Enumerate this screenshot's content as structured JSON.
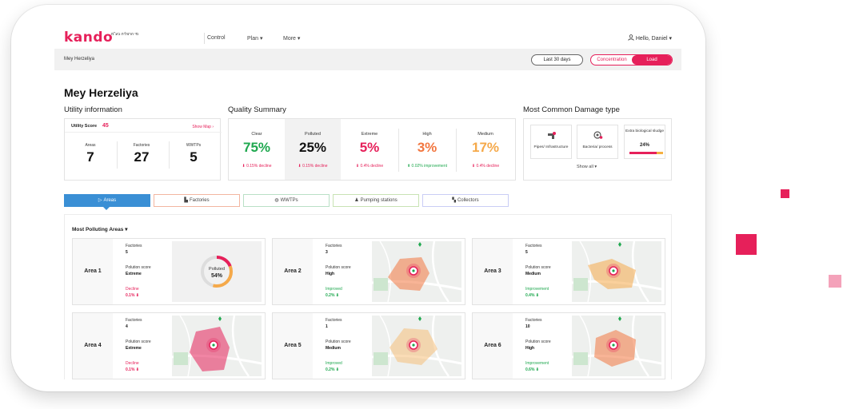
{
  "brand": {
    "logo": "kando",
    "tagline": "מי הרצליה בע\"מ"
  },
  "nav": {
    "control": "Control",
    "plan": "Plan ▾",
    "more": "More ▾",
    "user": "Hello, Daniel ▾"
  },
  "subbar": {
    "breadcrumb": "Mey Herzeliya",
    "date_range": "Last 30 days",
    "toggle_left": "Concentration",
    "toggle_right": "Load"
  },
  "page_title": "Mey Herzeliya",
  "utility": {
    "title": "Utility information",
    "score_label": "Utility Score",
    "score_value": "45",
    "show_map": "Show Map ›",
    "stats": [
      {
        "label": "Areas",
        "value": "7"
      },
      {
        "label": "Factories",
        "value": "27"
      },
      {
        "label": "WWTPs",
        "value": "5"
      }
    ]
  },
  "quality": {
    "title": "Quality Summary",
    "items": [
      {
        "label": "Clear",
        "value": "75%",
        "change": "⬇ 0.15% decline",
        "color": "#1fa84f",
        "change_color": "#e6205a"
      },
      {
        "label": "Polluted",
        "value": "25%",
        "change": "⬇ 0.15% decline",
        "color": "#111111",
        "change_color": "#e6205a"
      },
      {
        "label": "Extreme",
        "value": "5%",
        "change": "⬇ 0.4% decline",
        "color": "#e6205a",
        "change_color": "#e6205a"
      },
      {
        "label": "High",
        "value": "3%",
        "change": "⬆ 0.02% improvement",
        "color": "#f2763f",
        "change_color": "#1fa84f"
      },
      {
        "label": "Medium",
        "value": "17%",
        "change": "⬇ 0.4% decline",
        "color": "#f5a94a",
        "change_color": "#e6205a"
      }
    ]
  },
  "damage": {
    "title": "Most Common Damage type",
    "items": [
      {
        "label": "Pipes/ Infrastructure",
        "icon": "pipe-icon"
      },
      {
        "label": "Bacteria/ process",
        "icon": "bacteria-icon"
      }
    ],
    "highlight": {
      "label": "Extra biological sludge",
      "value": "24%",
      "fill": 0.8
    },
    "show_all": "Show all ▾"
  },
  "tabs": [
    {
      "label": "Areas",
      "icon": "cursor-icon"
    },
    {
      "label": "Factories",
      "icon": "factory-icon"
    },
    {
      "label": "WWTPs",
      "icon": "wwtp-icon"
    },
    {
      "label": "Pumping stations",
      "icon": "pump-icon"
    },
    {
      "label": "Collectors",
      "icon": "collector-icon"
    }
  ],
  "areas_title": "Most Polluting Areas ▾",
  "area_labels": {
    "factories": "Factories",
    "score": "Polution score"
  },
  "areas": [
    {
      "name": "Area 1",
      "factories": "5",
      "score": "Extreme",
      "trend": "Decline",
      "change": "0.1% ⬇",
      "trend_color": "#e6205a",
      "donut_label": "Polluted",
      "donut_value": "54%",
      "donut_fraction": 0.54
    },
    {
      "name": "Area 2",
      "factories": "3",
      "score": "High",
      "trend": "Improved",
      "change": "0.2% ⬇",
      "trend_color": "#1fa84f",
      "zone_color": "#f2763f"
    },
    {
      "name": "Area 3",
      "factories": "5",
      "score": "Medium",
      "trend": "Improvement",
      "change": "0.4% ⬇",
      "trend_color": "#1fa84f",
      "zone_color": "#f5a94a"
    },
    {
      "name": "Area 4",
      "factories": "4",
      "score": "Extreme",
      "trend": "Decline",
      "change": "0.1% ⬇",
      "trend_color": "#e6205a",
      "zone_color": "#e6205a"
    },
    {
      "name": "Area 5",
      "factories": "1",
      "score": "Medium",
      "trend": "Improved",
      "change": "0.2% ⬇",
      "trend_color": "#1fa84f",
      "zone_color": "#f5c07a"
    },
    {
      "name": "Area 6",
      "factories": "10",
      "score": "High",
      "trend": "Improvement",
      "change": "0.6% ⬇",
      "trend_color": "#1fa84f",
      "zone_color": "#f2763f"
    }
  ]
}
